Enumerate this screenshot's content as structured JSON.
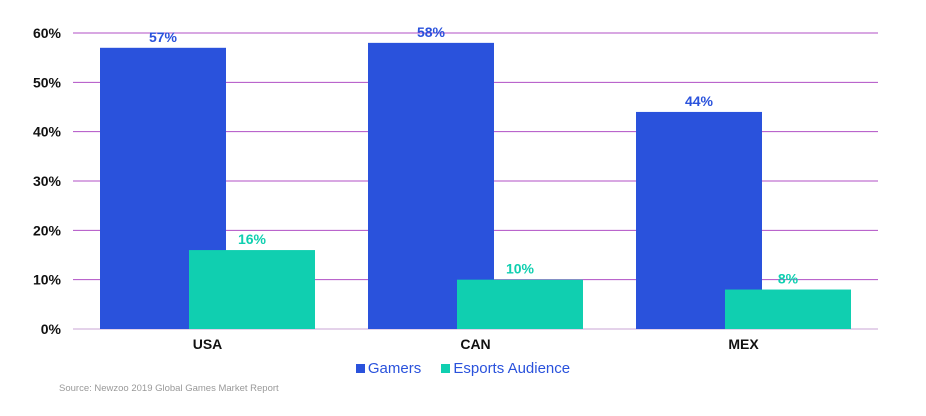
{
  "chart_data": {
    "type": "bar",
    "title": "",
    "xlabel": "",
    "ylabel": "",
    "categories": [
      "USA",
      "CAN",
      "MEX"
    ],
    "series": [
      {
        "name": "Gamers",
        "values": [
          57,
          58,
          44
        ],
        "labels": [
          "57%",
          "58%",
          "44%"
        ],
        "color": "#2a52dc"
      },
      {
        "name": "Esports Audience",
        "values": [
          16,
          10,
          8
        ],
        "labels": [
          "16%",
          "10%",
          "8%"
        ],
        "color": "#10cfb0"
      }
    ],
    "ylim": [
      0,
      60
    ],
    "yticks": [
      0,
      10,
      20,
      30,
      40,
      50,
      60
    ],
    "ytick_labels": [
      "0%",
      "10%",
      "20%",
      "30%",
      "40%",
      "50%",
      "60%"
    ],
    "grid": true,
    "grid_color": "#b04fc4",
    "legend": "bottom-center"
  },
  "source": "Source: Newzoo 2019 Global Games Market Report"
}
